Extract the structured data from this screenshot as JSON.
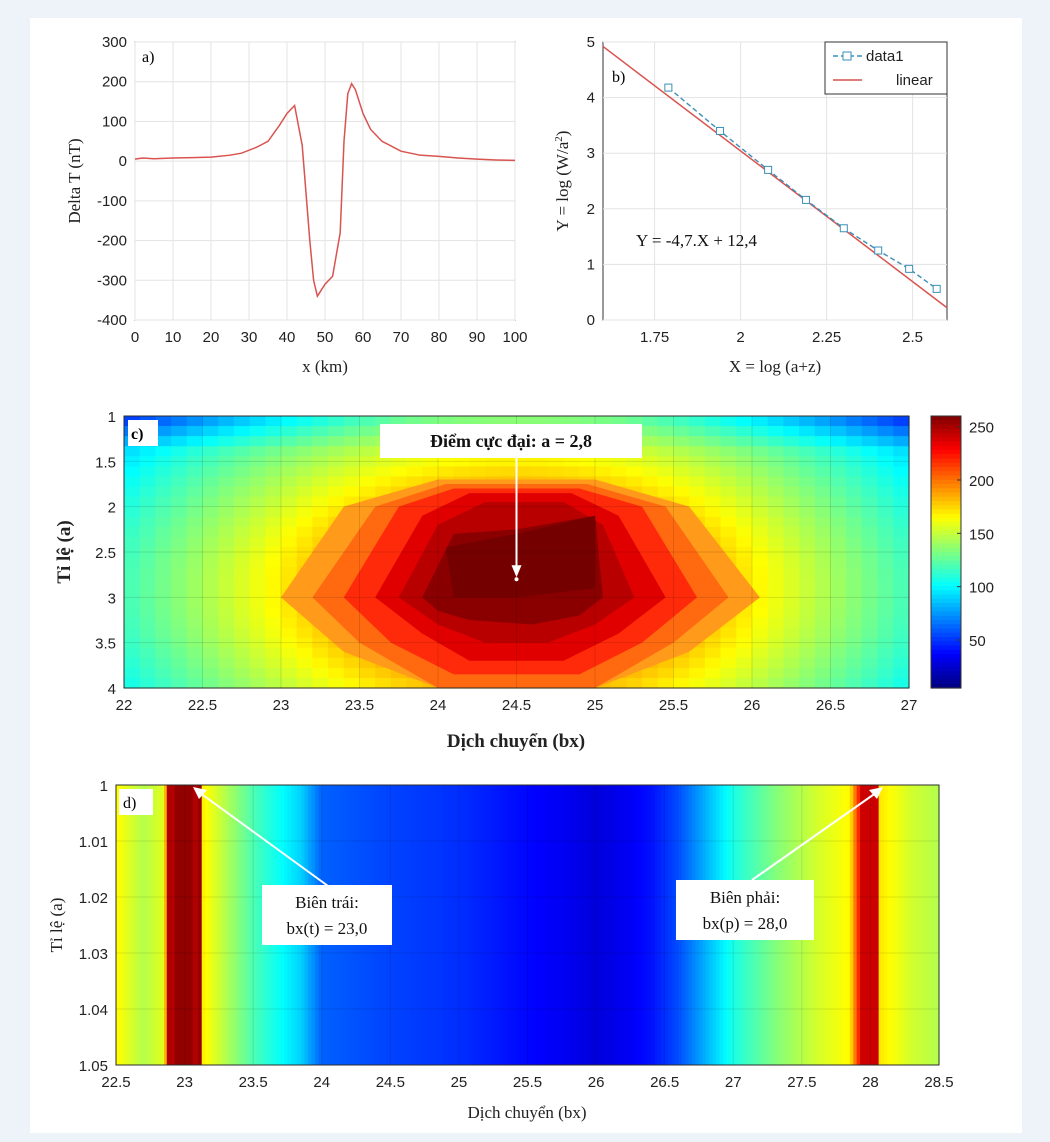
{
  "chart_data": [
    {
      "panel": "a)",
      "type": "line",
      "xlabel": "x (km)",
      "ylabel": "Delta T (nT)",
      "xlim": [
        0,
        100
      ],
      "ylim": [
        -400,
        300
      ],
      "xticks": [
        "0",
        "10",
        "20",
        "30",
        "40",
        "50",
        "60",
        "70",
        "80",
        "90",
        "100"
      ],
      "yticks": [
        "300",
        "200",
        "100",
        "0",
        "-100",
        "-200",
        "-300",
        "-400"
      ],
      "grid": true,
      "color": "#d9534f",
      "x": [
        0,
        2,
        5,
        10,
        15,
        20,
        25,
        28,
        32,
        35,
        38,
        40,
        42,
        44,
        46,
        47,
        48,
        50,
        52,
        54,
        55,
        56,
        57,
        58,
        60,
        62,
        65,
        70,
        75,
        80,
        85,
        90,
        95,
        100
      ],
      "y": [
        5,
        8,
        6,
        8,
        9,
        10,
        15,
        20,
        35,
        50,
        90,
        120,
        140,
        40,
        -200,
        -300,
        -340,
        -310,
        -290,
        -180,
        50,
        170,
        195,
        180,
        120,
        80,
        50,
        25,
        15,
        12,
        8,
        5,
        3,
        2
      ]
    },
    {
      "panel": "b)",
      "type": "line",
      "xlabel": "X = log (a+z)",
      "ylabel_main": "Y = log (W/a",
      "ylabel_sup": "2",
      "ylabel_end": ")",
      "xlim": [
        1.6,
        2.6
      ],
      "ylim": [
        0,
        5
      ],
      "xticks": [
        "1.75",
        "2",
        "2.25",
        "2.5"
      ],
      "xtick_values": [
        1.75,
        2,
        2.25,
        2.5
      ],
      "yticks": [
        "0",
        "1",
        "2",
        "3",
        "4",
        "5"
      ],
      "grid": true,
      "equation": "Y = -4,7.X + 12,4",
      "legend": [
        "data1",
        "linear"
      ],
      "legend_position": "top-right",
      "series": [
        {
          "name": "data1",
          "style": "dashed-square",
          "color": "#3b8fb8",
          "x": [
            1.79,
            1.94,
            2.08,
            2.19,
            2.3,
            2.4,
            2.49,
            2.57
          ],
          "y": [
            4.18,
            3.4,
            2.7,
            2.16,
            1.65,
            1.25,
            0.92,
            0.56
          ]
        },
        {
          "name": "linear",
          "style": "solid",
          "color": "#d9534f",
          "x": [
            1.6,
            2.6
          ],
          "y": [
            4.92,
            0.22
          ]
        }
      ]
    },
    {
      "panel": "c)",
      "type": "heatmap",
      "xlabel": "Dịch chuyển (bx)",
      "ylabel": "Tỉ lệ (a)",
      "xlim": [
        22,
        27
      ],
      "ylim": [
        1,
        4
      ],
      "xticks": [
        "22",
        "22.5",
        "23",
        "23.5",
        "24",
        "24.5",
        "25",
        "25.5",
        "26",
        "26.5",
        "27"
      ],
      "yticks": [
        "1",
        "1.5",
        "2",
        "2.5",
        "3",
        "3.5",
        "4"
      ],
      "colorbar": {
        "min": 5,
        "max": 260,
        "ticks": [
          "250",
          "200",
          "150",
          "100",
          "50"
        ],
        "tick_values": [
          250,
          200,
          150,
          100,
          50
        ]
      },
      "annotation": {
        "text": "Điểm cực đại: a = 2,8",
        "point_x": 24.5,
        "point_y": 2.8
      }
    },
    {
      "panel": "d)",
      "type": "heatmap",
      "xlabel": "Dịch chuyển (bx)",
      "ylabel": "Tỉ lệ (a)",
      "xlim": [
        22.5,
        28.5
      ],
      "ylim": [
        1,
        1.05
      ],
      "xticks": [
        "22.5",
        "23",
        "23.5",
        "24",
        "24.5",
        "25",
        "25.5",
        "26",
        "26.5",
        "27",
        "27.5",
        "28",
        "28.5"
      ],
      "yticks": [
        "1",
        "1.01",
        "1.02",
        "1.03",
        "1.04",
        "1.05"
      ],
      "annotations": [
        {
          "line1": "Biên trái:",
          "line2": "bx(t) = 23,0",
          "point_x": 23.0
        },
        {
          "line1": "Biên phải:",
          "line2": "bx(p) = 28,0",
          "point_x": 28.0
        }
      ]
    }
  ]
}
